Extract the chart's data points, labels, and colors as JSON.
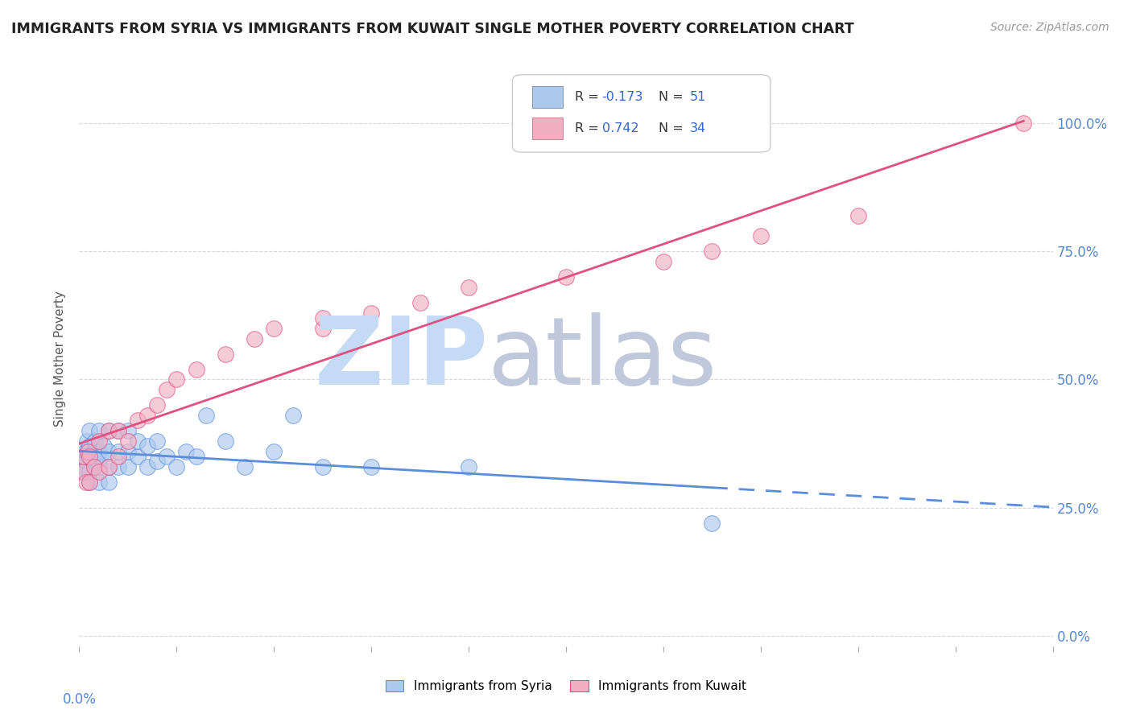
{
  "title": "IMMIGRANTS FROM SYRIA VS IMMIGRANTS FROM KUWAIT SINGLE MOTHER POVERTY CORRELATION CHART",
  "source": "Source: ZipAtlas.com",
  "ylabel": "Single Mother Poverty",
  "legend_syria": "Immigrants from Syria",
  "legend_kuwait": "Immigrants from Kuwait",
  "R_syria": -0.173,
  "N_syria": 51,
  "R_kuwait": 0.742,
  "N_kuwait": 34,
  "syria_color": "#adc9ee",
  "kuwait_color": "#f2afc4",
  "syria_line_color": "#5b8dd9",
  "kuwait_line_color": "#e05080",
  "background_color": "#ffffff",
  "grid_color": "#d8d8d8",
  "title_color": "#222222",
  "xlim": [
    0.0,
    0.1
  ],
  "ylim": [
    -0.02,
    1.1
  ],
  "yticks": [
    0.0,
    0.25,
    0.5,
    0.75,
    1.0
  ],
  "ytick_labels": [
    "0.0%",
    "25.0%",
    "50.0%",
    "75.0%",
    "100.0%"
  ],
  "syria_x": [
    0.0003,
    0.0004,
    0.0005,
    0.0006,
    0.0007,
    0.0008,
    0.0009,
    0.001,
    0.001,
    0.001,
    0.001,
    0.001,
    0.0015,
    0.0015,
    0.0016,
    0.0018,
    0.002,
    0.002,
    0.002,
    0.002,
    0.0022,
    0.0025,
    0.003,
    0.003,
    0.003,
    0.003,
    0.004,
    0.004,
    0.004,
    0.005,
    0.005,
    0.005,
    0.006,
    0.006,
    0.007,
    0.007,
    0.008,
    0.008,
    0.009,
    0.01,
    0.011,
    0.012,
    0.013,
    0.015,
    0.017,
    0.02,
    0.022,
    0.025,
    0.03,
    0.04,
    0.065
  ],
  "syria_y": [
    0.33,
    0.35,
    0.32,
    0.36,
    0.34,
    0.38,
    0.36,
    0.3,
    0.32,
    0.35,
    0.37,
    0.4,
    0.33,
    0.36,
    0.38,
    0.34,
    0.3,
    0.33,
    0.36,
    0.4,
    0.35,
    0.37,
    0.3,
    0.33,
    0.36,
    0.4,
    0.33,
    0.36,
    0.4,
    0.33,
    0.36,
    0.4,
    0.35,
    0.38,
    0.33,
    0.37,
    0.34,
    0.38,
    0.35,
    0.33,
    0.36,
    0.35,
    0.43,
    0.38,
    0.33,
    0.36,
    0.43,
    0.33,
    0.33,
    0.33,
    0.22
  ],
  "kuwait_x": [
    0.0003,
    0.0005,
    0.0007,
    0.0009,
    0.001,
    0.001,
    0.0015,
    0.002,
    0.002,
    0.003,
    0.003,
    0.004,
    0.004,
    0.005,
    0.006,
    0.007,
    0.008,
    0.009,
    0.01,
    0.012,
    0.015,
    0.018,
    0.02,
    0.025,
    0.025,
    0.03,
    0.035,
    0.04,
    0.05,
    0.06,
    0.065,
    0.07,
    0.08,
    0.097
  ],
  "kuwait_y": [
    0.32,
    0.35,
    0.3,
    0.36,
    0.3,
    0.35,
    0.33,
    0.32,
    0.38,
    0.33,
    0.4,
    0.35,
    0.4,
    0.38,
    0.42,
    0.43,
    0.45,
    0.48,
    0.5,
    0.52,
    0.55,
    0.58,
    0.6,
    0.6,
    0.62,
    0.63,
    0.65,
    0.68,
    0.7,
    0.73,
    0.75,
    0.78,
    0.82,
    1.0
  ],
  "watermark_zip_color": "#c5daf5",
  "watermark_atlas_color": "#c0c8dc"
}
